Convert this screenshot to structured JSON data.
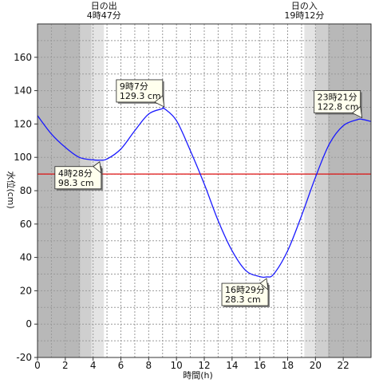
{
  "chart_data": {
    "type": "line",
    "xlabel": "時間(h)",
    "ylabel": "水位(cm)",
    "xlim": [
      0,
      24
    ],
    "ylim": [
      -20,
      180
    ],
    "x_ticks": [
      0,
      2,
      4,
      6,
      8,
      10,
      12,
      14,
      16,
      18,
      20,
      22
    ],
    "x_tick_labels": [
      "0",
      "2",
      "4",
      "6",
      "8",
      "10",
      "12",
      "14",
      "16",
      "18",
      "20",
      "22"
    ],
    "y_ticks": [
      -20,
      0,
      20,
      40,
      60,
      80,
      100,
      120,
      140,
      160
    ],
    "y_tick_labels": [
      "-20",
      "0",
      "20",
      "40",
      "60",
      "80",
      "100",
      "120",
      "140",
      "160"
    ],
    "grid": true,
    "series": [
      {
        "color": "#1a1aff",
        "x": [
          0,
          1,
          2,
          3,
          4,
          4.47,
          5,
          6,
          7,
          8,
          9,
          9.12,
          10,
          11,
          12,
          13,
          14,
          15,
          16,
          16.48,
          17,
          18,
          19,
          20,
          21,
          22,
          23,
          23.35,
          24
        ],
        "y": [
          125,
          114,
          106,
          100,
          98.5,
          98.3,
          99,
          105,
          116,
          126,
          129.2,
          129.3,
          122,
          104,
          84,
          62,
          44,
          32,
          28.5,
          28.3,
          30,
          44,
          65,
          88,
          108,
          119,
          122.6,
          122.8,
          121.5
        ]
      }
    ],
    "reference_lines": [
      {
        "axis": "y",
        "value": 90,
        "color": "#dd1111"
      }
    ],
    "shading": {
      "sunrise_hour": 4.78,
      "sunset_hour": 19.2,
      "dark_color": "#b8b8b8",
      "mid_color": "#cfcfcf",
      "light_color": "#e4e4e4"
    },
    "sun_labels": [
      {
        "title": "日の出",
        "time": "4時47分",
        "hour": 4.78
      },
      {
        "title": "日の入",
        "time": "19時12分",
        "hour": 19.2
      }
    ],
    "annotations": [
      {
        "time": "4時28分",
        "value": "98.3 cm",
        "x": 4.47,
        "y": 98.3,
        "place": "below-left"
      },
      {
        "time": "9時7分",
        "value": "129.3 cm",
        "x": 9.12,
        "y": 129.3,
        "place": "above-left"
      },
      {
        "time": "16時29分",
        "value": "28.3 cm",
        "x": 16.48,
        "y": 28.3,
        "place": "below-left"
      },
      {
        "time": "23時21分",
        "value": "122.8 cm",
        "x": 23.35,
        "y": 122.8,
        "place": "above-left"
      }
    ]
  }
}
